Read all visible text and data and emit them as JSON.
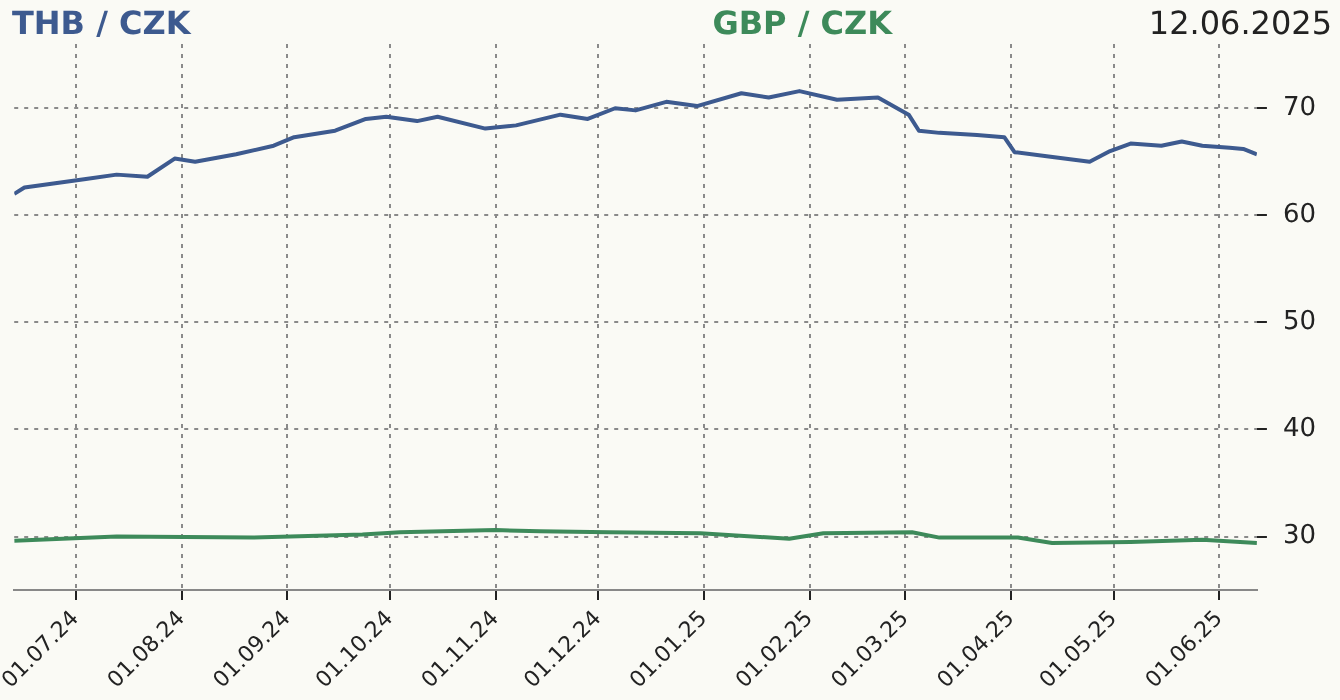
{
  "chart_data": {
    "type": "line",
    "annotations": [
      "12.06.2025"
    ],
    "legend": "top",
    "grid": true,
    "line_style": "solid",
    "marker": "none",
    "xlim": [
      "2024-06-13",
      "2025-06-12"
    ],
    "xticks": [
      {
        "value": "2024-07-01",
        "label": "01.07.24"
      },
      {
        "value": "2024-08-01",
        "label": "01.08.24"
      },
      {
        "value": "2024-09-01",
        "label": "01.09.24"
      },
      {
        "value": "2024-10-01",
        "label": "01.10.24"
      },
      {
        "value": "2024-11-01",
        "label": "01.11.24"
      },
      {
        "value": "2024-12-01",
        "label": "01.12.24"
      },
      {
        "value": "2025-01-01",
        "label": "01.01.25"
      },
      {
        "value": "2025-02-01",
        "label": "01.02.25"
      },
      {
        "value": "2025-03-01",
        "label": "01.03.25"
      },
      {
        "value": "2025-04-01",
        "label": "01.04.25"
      },
      {
        "value": "2025-05-01",
        "label": "01.05.25"
      },
      {
        "value": "2025-06-01",
        "label": "01.06.25"
      }
    ],
    "ylim": [
      25,
      76
    ],
    "yticks": [
      30,
      40,
      50,
      60,
      70
    ],
    "series": [
      {
        "name": "THB / CZK",
        "color": "#3d5a8f",
        "x": [
          "2024-06-13",
          "2024-06-16",
          "2024-06-25",
          "2024-07-04",
          "2024-07-13",
          "2024-07-22",
          "2024-07-30",
          "2024-08-05",
          "2024-08-17",
          "2024-08-28",
          "2024-09-03",
          "2024-09-15",
          "2024-09-24",
          "2024-09-30",
          "2024-10-09",
          "2024-10-15",
          "2024-10-29",
          "2024-11-07",
          "2024-11-20",
          "2024-11-28",
          "2024-12-06",
          "2024-12-12",
          "2024-12-21",
          "2024-12-30",
          "2025-01-12",
          "2025-01-20",
          "2025-01-29",
          "2025-02-09",
          "2025-02-21",
          "2025-03-02",
          "2025-03-05",
          "2025-03-11",
          "2025-03-22",
          "2025-03-30",
          "2025-04-02",
          "2025-04-12",
          "2025-04-24",
          "2025-04-30",
          "2025-05-06",
          "2025-05-15",
          "2025-05-21",
          "2025-05-27",
          "2025-06-04",
          "2025-06-08",
          "2025-06-12"
        ],
        "values": [
          62.0,
          62.6,
          63.0,
          63.4,
          63.8,
          63.6,
          65.3,
          65.0,
          65.7,
          66.5,
          67.3,
          67.9,
          69.0,
          69.2,
          68.8,
          69.2,
          68.1,
          68.4,
          69.4,
          69.0,
          70.0,
          69.8,
          70.6,
          70.2,
          71.4,
          71.0,
          71.6,
          70.8,
          71.0,
          69.4,
          67.9,
          67.7,
          67.5,
          67.3,
          65.9,
          65.5,
          65.0,
          66.0,
          66.7,
          66.5,
          66.9,
          66.5,
          66.3,
          66.2,
          65.7
        ]
      },
      {
        "name": "GBP / CZK",
        "color": "#3d8a5a",
        "x": [
          "2024-06-13",
          "2024-07-13",
          "2024-08-22",
          "2024-09-23",
          "2024-10-04",
          "2024-11-01",
          "2024-11-14",
          "2024-12-04",
          "2024-12-31",
          "2025-01-26",
          "2025-02-05",
          "2025-03-03",
          "2025-03-11",
          "2025-04-03",
          "2025-04-13",
          "2025-05-06",
          "2025-05-27",
          "2025-06-12"
        ],
        "values": [
          29.6,
          30.0,
          29.9,
          30.2,
          30.4,
          30.6,
          30.5,
          30.4,
          30.3,
          29.8,
          30.3,
          30.4,
          29.9,
          29.9,
          29.4,
          29.5,
          29.7,
          29.4
        ]
      }
    ]
  }
}
